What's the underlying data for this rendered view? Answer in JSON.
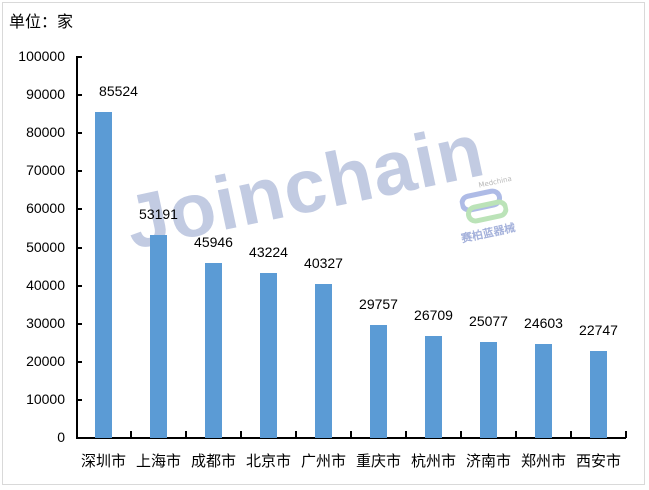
{
  "unit_label": "单位：家",
  "watermarks": {
    "main": "Joinchain",
    "secondary_en": "Medchina",
    "secondary_cn": "赛柏蓝器械"
  },
  "colors": {
    "bar": "#5b9bd5",
    "axis": "#000000"
  },
  "y_ticks": [
    "100000",
    "90000",
    "80000",
    "70000",
    "60000",
    "50000",
    "40000",
    "30000",
    "20000",
    "10000",
    "0"
  ],
  "chart_data": {
    "type": "bar",
    "title": "",
    "xlabel": "",
    "ylabel": "单位：家",
    "ylim": [
      0,
      100000
    ],
    "grid": false,
    "legend": null,
    "categories": [
      "深圳市",
      "上海市",
      "成都市",
      "北京市",
      "广州市",
      "重庆市",
      "杭州市",
      "济南市",
      "郑州市",
      "西安市"
    ],
    "values": [
      85524,
      53191,
      45946,
      43224,
      40327,
      29757,
      26709,
      25077,
      24603,
      22747
    ],
    "value_labels": [
      "85524",
      "53191",
      "45946",
      "43224",
      "40327",
      "29757",
      "26709",
      "25077",
      "24603",
      "22747"
    ]
  }
}
